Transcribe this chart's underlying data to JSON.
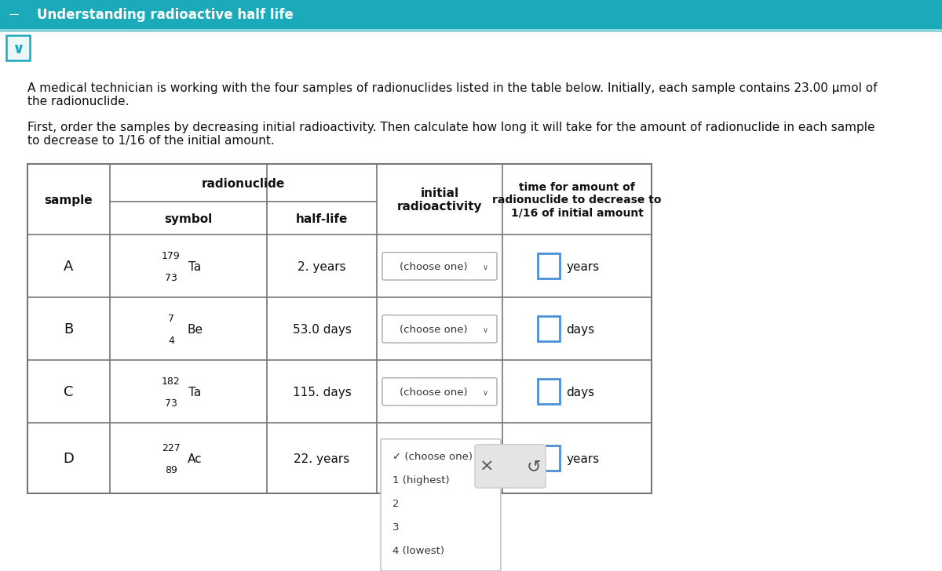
{
  "title": "Understanding radioactive half life",
  "title_bg": "#1baab9",
  "title_text_color": "#ffffff",
  "body_bg": "#ffffff",
  "paragraph1": "A medical technician is working with the four samples of radionuclides listed in the table below. Initially, each sample contains 23.00 μmol of\nthe radionuclide.",
  "paragraph2": "First, order the samples by decreasing initial radioactivity. Then calculate how long it will take for the amount of radionuclide in each sample\nto decrease to 1/16 of the initial amount.",
  "rows": [
    {
      "sample": "A",
      "mass_num": "179",
      "atomic_num": "73",
      "symbol": "Ta",
      "half_life": "2. years",
      "unit": "years",
      "dropdown_open": false
    },
    {
      "sample": "B",
      "mass_num": "7",
      "atomic_num": "4",
      "symbol": "Be",
      "half_life": "53.0 days",
      "unit": "days",
      "dropdown_open": false
    },
    {
      "sample": "C",
      "mass_num": "182",
      "atomic_num": "73",
      "symbol": "Ta",
      "half_life": "115. days",
      "unit": "days",
      "dropdown_open": false
    },
    {
      "sample": "D",
      "mass_num": "227",
      "atomic_num": "89",
      "symbol": "Ac",
      "half_life": "22. years",
      "unit": "years",
      "dropdown_open": true
    }
  ],
  "dropdown_items": [
    "✓ (choose one)",
    "1 (highest)",
    "2",
    "3",
    "4 (lowest)"
  ],
  "table_border_color": "#777777",
  "input_box_color": "#4a90d9",
  "chevron_color": "#1baab9"
}
